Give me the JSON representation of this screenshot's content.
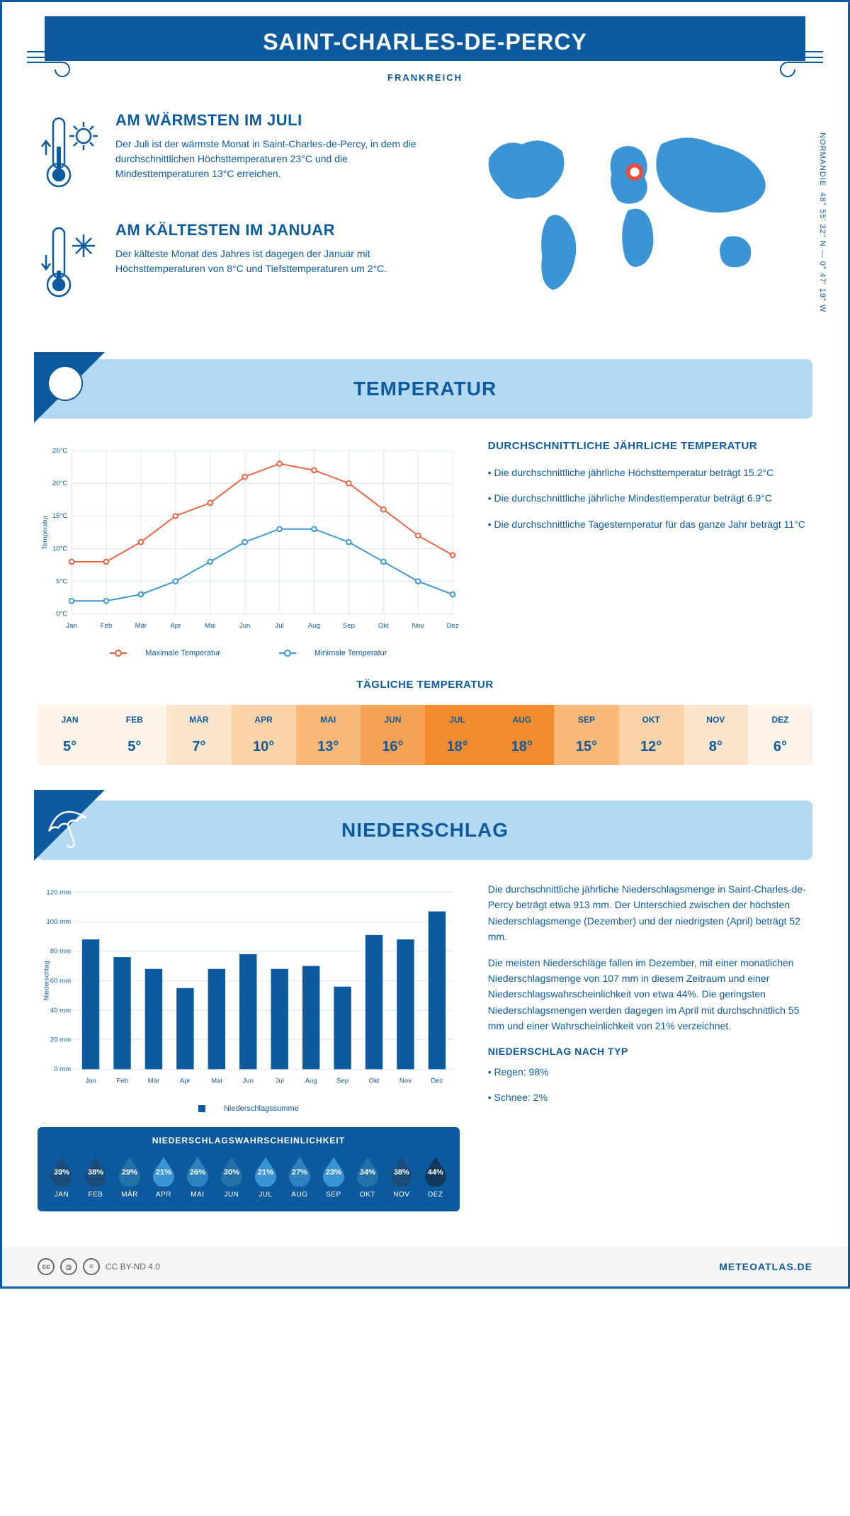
{
  "header": {
    "title": "SAINT-CHARLES-DE-PERCY",
    "country": "FRANKREICH"
  },
  "coords": {
    "lat": "48° 55' 32\" N — 0° 47' 19\" W",
    "region": "NORMANDIE"
  },
  "intro": {
    "warm": {
      "title": "AM WÄRMSTEN IM JULI",
      "text": "Der Juli ist der wärmste Monat in Saint-Charles-de-Percy, in dem die durchschnittlichen Höchsttemperaturen 23°C und die Mindesttemperaturen 13°C erreichen."
    },
    "cold": {
      "title": "AM KÄLTESTEN IM JANUAR",
      "text": "Der kälteste Monat des Jahres ist dagegen der Januar mit Höchsttemperaturen von 8°C und Tiefsttemperaturen um 2°C."
    }
  },
  "months": [
    "Jan",
    "Feb",
    "Mär",
    "Apr",
    "Mai",
    "Jun",
    "Jul",
    "Aug",
    "Sep",
    "Okt",
    "Nov",
    "Dez"
  ],
  "months_upper": [
    "JAN",
    "FEB",
    "MÄR",
    "APR",
    "MAI",
    "JUN",
    "JUL",
    "AUG",
    "SEP",
    "OKT",
    "NOV",
    "DEZ"
  ],
  "temp_section": {
    "title": "TEMPERATUR",
    "chart": {
      "type": "line",
      "ylabel": "Temperatur",
      "ylim": [
        0,
        25
      ],
      "ytick_step": 5,
      "ytick_labels": [
        "0°C",
        "5°C",
        "10°C",
        "15°C",
        "20°C",
        "25°C"
      ],
      "grid_color": "#d6e6f3",
      "background_color": "#ffffff",
      "series": [
        {
          "name": "Maximale Temperatur",
          "color": "#e8613e",
          "values": [
            8,
            8,
            11,
            15,
            17,
            21,
            23,
            22,
            20,
            16,
            12,
            9
          ]
        },
        {
          "name": "Minimale Temperatur",
          "color": "#3b95d4",
          "values": [
            2,
            2,
            3,
            5,
            8,
            11,
            13,
            13,
            11,
            8,
            5,
            3
          ]
        }
      ],
      "legend": {
        "max": "Maximale Temperatur",
        "min": "Minimale Temperatur"
      }
    },
    "text": {
      "heading": "DURCHSCHNITTLICHE JÄHRLICHE TEMPERATUR",
      "p1": "• Die durchschnittliche jährliche Höchsttemperatur beträgt 15.2°C",
      "p2": "• Die durchschnittliche jährliche Mindesttemperatur beträgt 6.9°C",
      "p3": "• Die durchschnittliche Tagestemperatur für das ganze Jahr beträgt 11°C"
    },
    "daily": {
      "title": "TÄGLICHE TEMPERATUR",
      "values": [
        "5°",
        "5°",
        "7°",
        "10°",
        "13°",
        "16°",
        "18°",
        "18°",
        "15°",
        "12°",
        "8°",
        "6°"
      ],
      "cell_colors": [
        "#fdf3e7",
        "#fdf3e7",
        "#fce4cb",
        "#fad3a8",
        "#f7b87a",
        "#f5a254",
        "#f28c2e",
        "#f28c2e",
        "#f7b87a",
        "#fad3a8",
        "#fce4cb",
        "#fdf3e7"
      ]
    }
  },
  "precip_section": {
    "title": "NIEDERSCHLAG",
    "chart": {
      "type": "bar",
      "ylabel": "Niederschlag",
      "ylim": [
        0,
        120
      ],
      "ytick_step": 20,
      "ytick_labels": [
        "0 mm",
        "20 mm",
        "40 mm",
        "60 mm",
        "80 mm",
        "100 mm",
        "120 mm"
      ],
      "grid_color": "#d6e6f3",
      "bar_color": "#0d5a9e",
      "values": [
        88,
        76,
        68,
        55,
        68,
        78,
        68,
        70,
        56,
        91,
        88,
        107
      ],
      "legend": "Niederschlagssumme"
    },
    "text": {
      "p1": "Die durchschnittliche jährliche Niederschlagsmenge in Saint-Charles-de-Percy beträgt etwa 913 mm. Der Unterschied zwischen der höchsten Niederschlagsmenge (Dezember) und der niedrigsten (April) beträgt 52 mm.",
      "p2": "Die meisten Niederschläge fallen im Dezember, mit einer monatlichen Niederschlagsmenge von 107 mm in diesem Zeitraum und einer Niederschlagswahrscheinlichkeit von etwa 44%. Die geringsten Niederschlagsmengen werden dagegen im April mit durchschnittlich 55 mm und einer Wahrscheinlichkeit von 21% verzeichnet.",
      "type_heading": "NIEDERSCHLAG NACH TYP",
      "type1": "• Regen: 98%",
      "type2": "• Schnee: 2%"
    },
    "probability": {
      "title": "NIEDERSCHLAGSWAHRSCHEINLICHKEIT",
      "values": [
        "39%",
        "38%",
        "29%",
        "21%",
        "26%",
        "30%",
        "21%",
        "27%",
        "23%",
        "34%",
        "38%",
        "44%"
      ],
      "colors": [
        "#1a4d7a",
        "#1a4d7a",
        "#2470a8",
        "#3b95d4",
        "#2e82be",
        "#2470a8",
        "#3b95d4",
        "#2e82be",
        "#3b95d4",
        "#2470a8",
        "#1a4d7a",
        "#12395c"
      ]
    }
  },
  "footer": {
    "license": "CC BY-ND 4.0",
    "site": "METEOATLAS.DE"
  }
}
